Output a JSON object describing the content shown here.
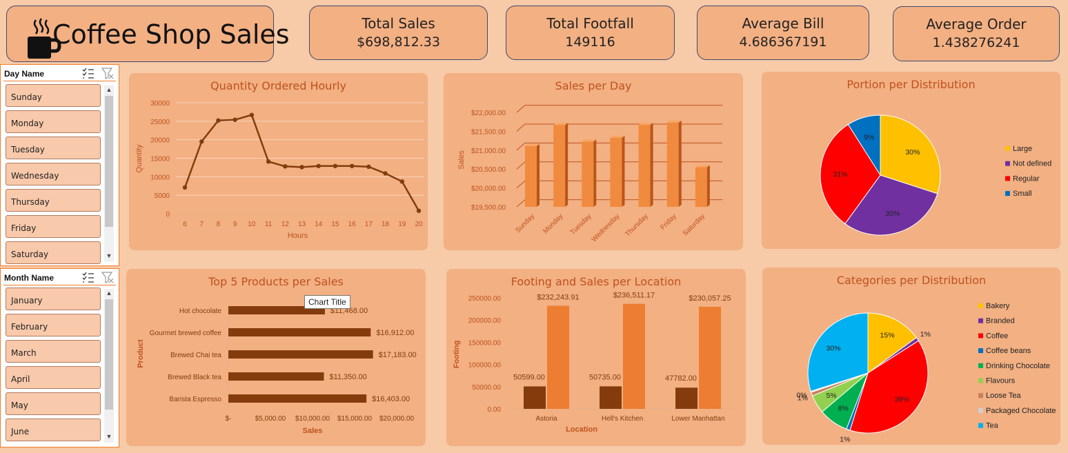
{
  "header": {
    "title": "Coffee Shop Sales",
    "icon": "coffee-cup-icon"
  },
  "kpis": [
    {
      "label": "Total Sales",
      "value": "$698,812.33"
    },
    {
      "label": "Total Footfall",
      "value": "149116"
    },
    {
      "label": "Average Bill",
      "value": "4.686367191"
    },
    {
      "label": "Average Order",
      "value": "1.438276241"
    }
  ],
  "slicers": {
    "day": {
      "title": "Day Name",
      "items": [
        "Sunday",
        "Monday",
        "Tuesday",
        "Wednesday",
        "Thursday",
        "Friday",
        "Saturday"
      ]
    },
    "month": {
      "title": "Month Name",
      "items": [
        "January",
        "February",
        "March",
        "April",
        "May",
        "June"
      ]
    }
  },
  "tooltip": "Chart Title",
  "colors": {
    "background": "#f7caa8",
    "panel": "#f2b083",
    "accent": "#c0521e",
    "dark_brown": "#843c0c",
    "orange": "#ed7d31"
  },
  "chart_data": [
    {
      "id": "hourly",
      "type": "line",
      "title": "Quantity Ordered Hourly",
      "xlabel": "Hours",
      "ylabel": "Quantity",
      "x": [
        6,
        7,
        8,
        9,
        10,
        11,
        12,
        13,
        14,
        15,
        16,
        17,
        18,
        19,
        20
      ],
      "values": [
        7100,
        19500,
        25200,
        25400,
        26700,
        14100,
        12800,
        12600,
        12900,
        12900,
        12900,
        12700,
        10900,
        8700,
        800
      ],
      "ylim": [
        0,
        30000
      ],
      "yticks": [
        0,
        5000,
        10000,
        15000,
        20000,
        25000,
        30000
      ],
      "grid": true
    },
    {
      "id": "daily",
      "type": "bar",
      "title": "Sales per Day",
      "ylabel": "Sales",
      "categories": [
        "Sunday",
        "Monday",
        "Tuesday",
        "Wednesday",
        "Thursday",
        "Friday",
        "Saturday"
      ],
      "values": [
        21110,
        21670,
        21230,
        21330,
        21670,
        21730,
        20550
      ],
      "ylim": [
        19500,
        22000
      ],
      "yticks": [
        "$19,500.00",
        "$20,000.00",
        "$20,500.00",
        "$21,000.00",
        "$21,500.00",
        "$22,000.00"
      ],
      "grid": true
    },
    {
      "id": "size",
      "type": "pie",
      "title": "Portion per Distribution",
      "categories": [
        "Large",
        "Not defined",
        "Regular",
        "Small"
      ],
      "values": [
        30,
        30,
        31,
        9
      ],
      "labels": [
        "30%",
        "30%",
        "31%",
        "9%"
      ],
      "colors": [
        "#ffc000",
        "#7030a0",
        "#ff0000",
        "#0070c0"
      ],
      "legend": "right"
    },
    {
      "id": "products",
      "type": "bar",
      "orientation": "horizontal",
      "title": "Top 5 Products per Sales",
      "xlabel": "Sales",
      "ylabel": "Product",
      "categories": [
        "Hot chocolate",
        "Gourmet brewed coffee",
        "Brewed Chai tea",
        "Brewed Black tea",
        "Barista Espresso"
      ],
      "values": [
        11468,
        16912,
        17183,
        11350,
        16403
      ],
      "data_labels": [
        "$11,468.00",
        "$16,912.00",
        "$17,183.00",
        "$11,350.00",
        "$16,403.00"
      ],
      "xlim": [
        0,
        20000
      ],
      "xticks": [
        "$-",
        "$5,000.00",
        "$10,000.00",
        "$15,000.00",
        "$20,000.00"
      ]
    },
    {
      "id": "location",
      "type": "bar",
      "title": "Footing and Sales per Location",
      "xlabel": "Location",
      "ylabel": "Footing",
      "categories": [
        "Astoria",
        "Hell's Kitchen",
        "Lower Manhattan"
      ],
      "series": [
        {
          "values": [
            50599,
            50735,
            47782
          ],
          "labels": [
            "50599.00",
            "50735.00",
            "47782.00"
          ],
          "color": "#843c0c"
        },
        {
          "values": [
            232243.91,
            236511.17,
            230057.25
          ],
          "labels": [
            "$232,243.91",
            "$236,511.17",
            "$230,057.25"
          ],
          "color": "#ed7d31"
        }
      ],
      "ylim": [
        0,
        250000
      ],
      "yticks": [
        "0.00",
        "50000.00",
        "100000.00",
        "150000.00",
        "200000.00",
        "250000.00"
      ]
    },
    {
      "id": "categories",
      "type": "pie",
      "title": "Categories per Distribution",
      "categories": [
        "Bakery",
        "Branded",
        "Coffee",
        "Coffee beans",
        "Drinking Chocolate",
        "Flavours",
        "Loose Tea",
        "Packaged Chocolate",
        "Tea"
      ],
      "values": [
        15,
        1,
        39,
        1,
        8,
        5,
        1,
        0.3,
        30
      ],
      "labels": [
        "15%",
        "1%",
        "39%",
        "1%",
        "8%",
        "5%",
        "1%",
        "0%",
        "30%"
      ],
      "colors": [
        "#ffc000",
        "#7030a0",
        "#ff0000",
        "#0070c0",
        "#00b050",
        "#92d050",
        "#c9805a",
        "#d0d0d0",
        "#00b0f0"
      ],
      "legend": "right"
    }
  ]
}
